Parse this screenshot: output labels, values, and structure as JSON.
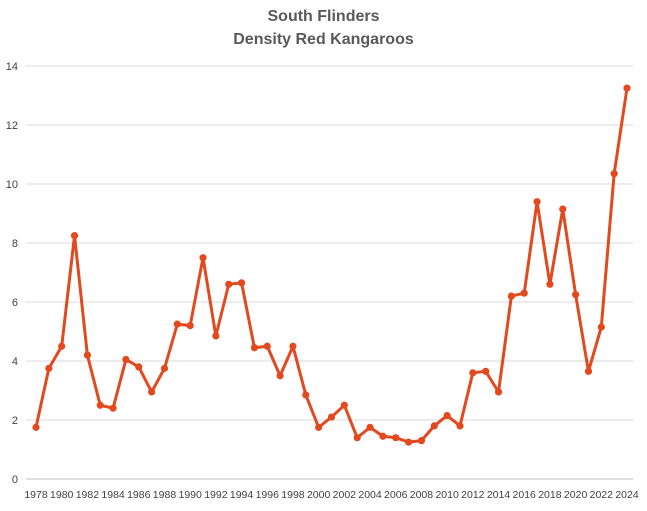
{
  "chart_data": {
    "type": "line",
    "title": "South Flinders",
    "subtitle": "Density Red Kangaroos",
    "xlabel": "",
    "ylabel": "",
    "ylim": [
      0,
      14
    ],
    "yticks": [
      0,
      2,
      4,
      6,
      8,
      10,
      12,
      14
    ],
    "grid": true,
    "legend": "none",
    "color": "#E2491F",
    "x": [
      1978,
      1979,
      1980,
      1981,
      1982,
      1983,
      1984,
      1985,
      1986,
      1987,
      1988,
      1989,
      1990,
      1991,
      1992,
      1993,
      1994,
      1995,
      1996,
      1997,
      1998,
      1999,
      2000,
      2001,
      2002,
      2003,
      2004,
      2005,
      2006,
      2007,
      2008,
      2009,
      2010,
      2011,
      2012,
      2013,
      2014,
      2015,
      2016,
      2017,
      2018,
      2019,
      2020,
      2021,
      2022,
      2023,
      2024
    ],
    "xtick_labels": [
      "1978",
      "1980",
      "1982",
      "1984",
      "1986",
      "1988",
      "1990",
      "1992",
      "1994",
      "1996",
      "1998",
      "2000",
      "2002",
      "2004",
      "2006",
      "2008",
      "2010",
      "2012",
      "2014",
      "2016",
      "2018",
      "2020",
      "2022",
      "2024"
    ],
    "series": [
      {
        "values": [
          1.75,
          3.75,
          4.5,
          8.25,
          4.2,
          2.5,
          2.4,
          4.05,
          3.8,
          2.95,
          3.75,
          5.25,
          5.2,
          7.5,
          4.85,
          6.6,
          6.65,
          4.45,
          4.5,
          3.5,
          4.5,
          2.85,
          1.75,
          2.1,
          2.5,
          1.4,
          1.75,
          1.45,
          1.4,
          1.25,
          1.3,
          1.8,
          2.15,
          1.8,
          3.6,
          3.65,
          2.95,
          6.2,
          6.3,
          9.4,
          6.6,
          9.15,
          6.25,
          3.65,
          5.15,
          10.35,
          13.25
        ]
      }
    ]
  }
}
